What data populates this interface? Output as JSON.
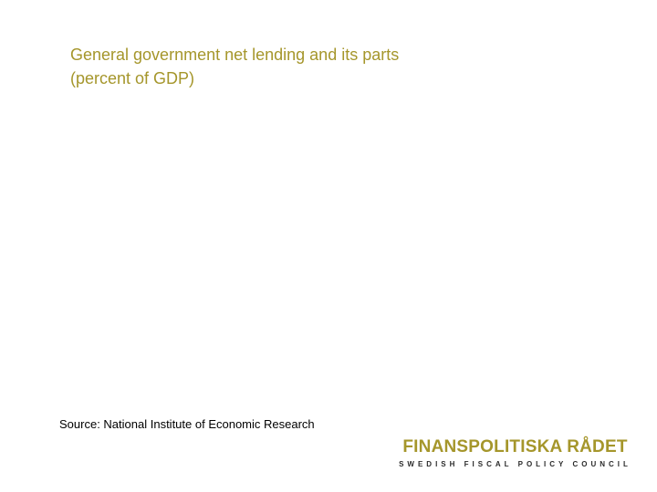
{
  "slide": {
    "title_line1": "General government net lending and its parts",
    "title_line2": "(percent of GDP)",
    "source": "Source: National Institute of Economic Research"
  },
  "logo": {
    "name": "FINANSPOLITISKA RÅDET",
    "tagline": "SWEDISH FISCAL POLICY COUNCIL"
  },
  "colors": {
    "title": "#a5962b",
    "logo": "#a5962b",
    "tagline": "#2b2b2b"
  }
}
